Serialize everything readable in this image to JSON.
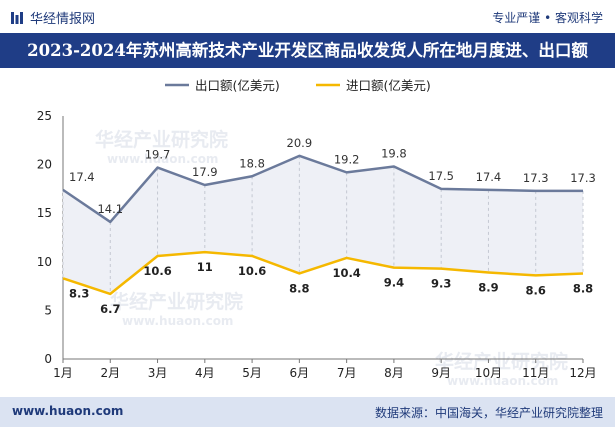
{
  "header": {
    "brand_name": "华经情报网",
    "tagline": "专业严谨 • 客观科学"
  },
  "watermark": {
    "text": "华经产业研究院",
    "url": "www.huaon.com"
  },
  "footer": {
    "website": "www.huaon.com",
    "source": "数据来源：中国海关，华经产业研究院整理"
  },
  "chart_data": {
    "type": "line",
    "title": "2023-2024年苏州高新技术产业开发区商品收发货人所在地月度进、出口额",
    "categories": [
      "1月",
      "2月",
      "3月",
      "4月",
      "5月",
      "6月",
      "7月",
      "8月",
      "9月",
      "10月",
      "11月",
      "12月"
    ],
    "series": [
      {
        "name": "出口额(亿美元)",
        "color": "#6b7a9b",
        "values": [
          17.4,
          14.1,
          19.7,
          17.9,
          18.8,
          20.9,
          19.2,
          19.8,
          17.5,
          17.4,
          17.3,
          17.3
        ]
      },
      {
        "name": "进口额(亿美元)",
        "color": "#f5b800",
        "values": [
          8.3,
          6.7,
          10.6,
          11,
          10.6,
          8.8,
          10.4,
          9.4,
          9.3,
          8.9,
          8.6,
          8.8
        ]
      }
    ],
    "ylim": [
      0,
      25
    ],
    "yticks": [
      0,
      5,
      10,
      15,
      20,
      25
    ],
    "legend": "top-center",
    "grid": false,
    "fill_between": true
  }
}
